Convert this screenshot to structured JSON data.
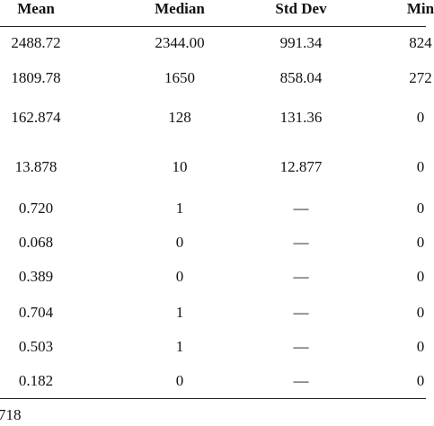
{
  "table": {
    "columns": [
      "Mean",
      "Median",
      "Std Dev",
      "Min"
    ],
    "rows": [
      [
        "2488.72",
        "2344.00",
        "991.34",
        "824"
      ],
      [
        "1809.78",
        "1650",
        "858.04",
        "272"
      ],
      [
        "162.874",
        "128",
        "131.36",
        "0"
      ],
      [
        "13.878",
        "10",
        "12.877",
        "0"
      ],
      [
        "0.720",
        "1",
        "—",
        "0"
      ],
      [
        "0.068",
        "0",
        "—",
        "0"
      ],
      [
        "0.389",
        "0",
        "—",
        "0"
      ],
      [
        "0.704",
        "1",
        "—",
        "0"
      ],
      [
        "0.503",
        "1",
        "—",
        "0"
      ],
      [
        "0.182",
        "0",
        "—",
        "0"
      ]
    ]
  },
  "footer": "718"
}
